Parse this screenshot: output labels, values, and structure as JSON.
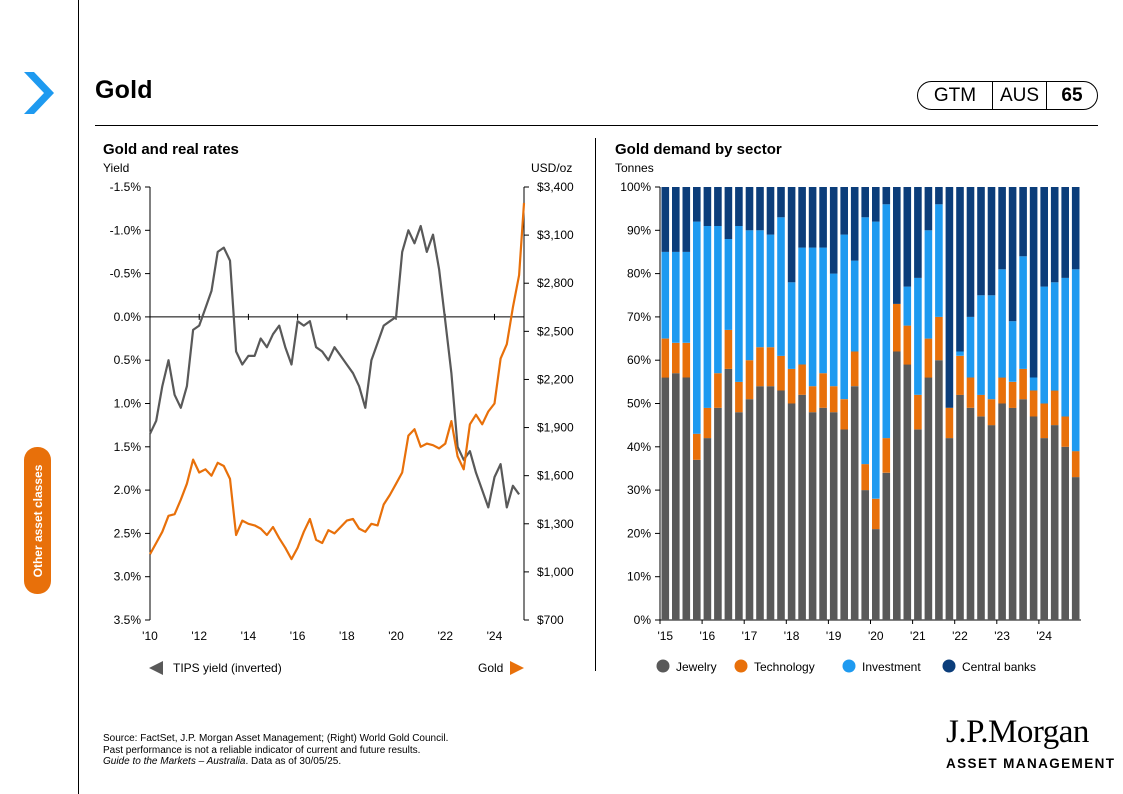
{
  "header": {
    "title": "Gold",
    "badge": {
      "a": "GTM",
      "b": "AUS",
      "c": "65"
    }
  },
  "sidebar": {
    "section_label": "Other asset classes"
  },
  "colors": {
    "gray": "#595959",
    "orange": "#E8700A",
    "light_blue": "#1E9AF0",
    "dark_blue": "#0B3D7A"
  },
  "icons": {
    "chevron": "chevron-right-icon"
  },
  "chart_data": [
    {
      "type": "line",
      "title": "Gold and real rates",
      "left_axis_title": "Yield",
      "right_axis_title": "USD/oz",
      "x_ticks": [
        "'10",
        "'12",
        "'14",
        "'16",
        "'18",
        "'20",
        "'22",
        "'24"
      ],
      "left_ticks": [
        "-1.5%",
        "-1.0%",
        "-0.5%",
        "0.0%",
        "0.5%",
        "1.0%",
        "1.5%",
        "2.0%",
        "2.5%",
        "3.0%",
        "3.5%"
      ],
      "right_ticks": [
        "$3,400",
        "$3,100",
        "$2,800",
        "$2,500",
        "$2,200",
        "$1,900",
        "$1,600",
        "$1,300",
        "$1,000",
        "$700"
      ],
      "left_range": [
        -1.5,
        3.5
      ],
      "right_range": [
        700,
        3400
      ],
      "left_inverted": true,
      "series": [
        {
          "name": "TIPS yield (inverted)",
          "axis": "left",
          "x": [
            2010.0,
            2010.25,
            2010.5,
            2010.75,
            2011.0,
            2011.25,
            2011.5,
            2011.75,
            2012.0,
            2012.25,
            2012.5,
            2012.75,
            2013.0,
            2013.25,
            2013.5,
            2013.75,
            2014.0,
            2014.25,
            2014.5,
            2014.75,
            2015.0,
            2015.25,
            2015.5,
            2015.75,
            2016.0,
            2016.25,
            2016.5,
            2016.75,
            2017.0,
            2017.25,
            2017.5,
            2017.75,
            2018.0,
            2018.25,
            2018.5,
            2018.75,
            2019.0,
            2019.25,
            2019.5,
            2019.75,
            2020.0,
            2020.25,
            2020.5,
            2020.75,
            2021.0,
            2021.25,
            2021.5,
            2021.75,
            2022.0,
            2022.25,
            2022.5,
            2022.75,
            2023.0,
            2023.25,
            2023.5,
            2023.75,
            2024.0,
            2024.25,
            2024.5,
            2024.75,
            2025.0
          ],
          "values": [
            1.35,
            1.2,
            0.8,
            0.5,
            0.9,
            1.05,
            0.8,
            0.15,
            0.1,
            -0.1,
            -0.3,
            -0.75,
            -0.8,
            -0.65,
            0.4,
            0.55,
            0.45,
            0.45,
            0.25,
            0.35,
            0.2,
            0.1,
            0.35,
            0.55,
            0.05,
            0.1,
            0.05,
            0.35,
            0.4,
            0.5,
            0.35,
            0.45,
            0.55,
            0.65,
            0.8,
            1.05,
            0.5,
            0.3,
            0.1,
            0.05,
            0.0,
            -0.75,
            -1.0,
            -0.85,
            -1.05,
            -0.75,
            -0.95,
            -0.55,
            0.05,
            0.65,
            1.5,
            1.65,
            1.55,
            1.8,
            2.0,
            2.2,
            1.85,
            1.7,
            2.2,
            1.95,
            2.05
          ]
        },
        {
          "name": "Gold",
          "axis": "right",
          "x": [
            2010.0,
            2010.25,
            2010.5,
            2010.75,
            2011.0,
            2011.25,
            2011.5,
            2011.75,
            2012.0,
            2012.25,
            2012.5,
            2012.75,
            2013.0,
            2013.25,
            2013.5,
            2013.75,
            2014.0,
            2014.25,
            2014.5,
            2014.75,
            2015.0,
            2015.25,
            2015.5,
            2015.75,
            2016.0,
            2016.25,
            2016.5,
            2016.75,
            2017.0,
            2017.25,
            2017.5,
            2017.75,
            2018.0,
            2018.25,
            2018.5,
            2018.75,
            2019.0,
            2019.25,
            2019.5,
            2019.75,
            2020.0,
            2020.25,
            2020.5,
            2020.75,
            2021.0,
            2021.25,
            2021.5,
            2021.75,
            2022.0,
            2022.25,
            2022.5,
            2022.75,
            2023.0,
            2023.25,
            2023.5,
            2023.75,
            2024.0,
            2024.25,
            2024.5,
            2024.75,
            2025.0,
            2025.2
          ],
          "values": [
            1110,
            1180,
            1250,
            1350,
            1360,
            1450,
            1550,
            1700,
            1620,
            1640,
            1600,
            1680,
            1660,
            1580,
            1230,
            1320,
            1300,
            1290,
            1270,
            1230,
            1280,
            1210,
            1150,
            1080,
            1150,
            1250,
            1330,
            1200,
            1180,
            1260,
            1240,
            1280,
            1320,
            1330,
            1270,
            1250,
            1300,
            1290,
            1420,
            1480,
            1550,
            1620,
            1850,
            1890,
            1780,
            1800,
            1790,
            1770,
            1800,
            1940,
            1720,
            1640,
            1920,
            1980,
            1920,
            2000,
            2050,
            2330,
            2420,
            2650,
            2850,
            3300
          ]
        }
      ],
      "legend": {
        "left": "TIPS yield (inverted)",
        "right": "Gold"
      }
    },
    {
      "type": "bar",
      "stacked": true,
      "title": "Gold demand by sector",
      "ylabel": "Tonnes",
      "y_ticks": [
        "100%",
        "90%",
        "80%",
        "70%",
        "60%",
        "50%",
        "40%",
        "30%",
        "20%",
        "10%",
        "0%"
      ],
      "x_ticks": [
        "'15",
        "'16",
        "'17",
        "'18",
        "'19",
        "'20",
        "'21",
        "'22",
        "'23",
        "'24"
      ],
      "ylim": [
        0,
        100
      ],
      "series_names": [
        "Jewelry",
        "Technology",
        "Investment",
        "Central banks"
      ],
      "jewelry": [
        56,
        57,
        56,
        37,
        42,
        49,
        58,
        48,
        51,
        54,
        54,
        53,
        50,
        52,
        48,
        49,
        48,
        44,
        54,
        30,
        21,
        34,
        62,
        59,
        44,
        56,
        60,
        42,
        52,
        49,
        47,
        45,
        50,
        49,
        51,
        47,
        42,
        45,
        40,
        33
      ],
      "technology": [
        9,
        7,
        8,
        6,
        7,
        8,
        9,
        7,
        9,
        9,
        9,
        8,
        8,
        7,
        6,
        8,
        6,
        7,
        8,
        6,
        7,
        8,
        11,
        9,
        8,
        9,
        10,
        7,
        9,
        7,
        5,
        6,
        6,
        6,
        7,
        6,
        8,
        8,
        7,
        6
      ],
      "investment": [
        20,
        21,
        21,
        49,
        42,
        34,
        21,
        36,
        30,
        27,
        26,
        32,
        20,
        27,
        32,
        29,
        26,
        38,
        21,
        57,
        64,
        54,
        0,
        9,
        27,
        25,
        26,
        0,
        1,
        14,
        23,
        24,
        25,
        14,
        26,
        3,
        27,
        25,
        32,
        42
      ]
    }
  ],
  "footer": {
    "source": "Source: FactSet, J.P. Morgan Asset Management; (Right) World Gold Council.",
    "disclaimer": "Past performance is not a reliable indicator of current and future results.",
    "guide": "Guide to the Markets – Australia",
    "date": ". Data as of 30/05/25."
  },
  "logo": {
    "line1": "J.P.Morgan",
    "line2": "ASSET MANAGEMENT"
  }
}
